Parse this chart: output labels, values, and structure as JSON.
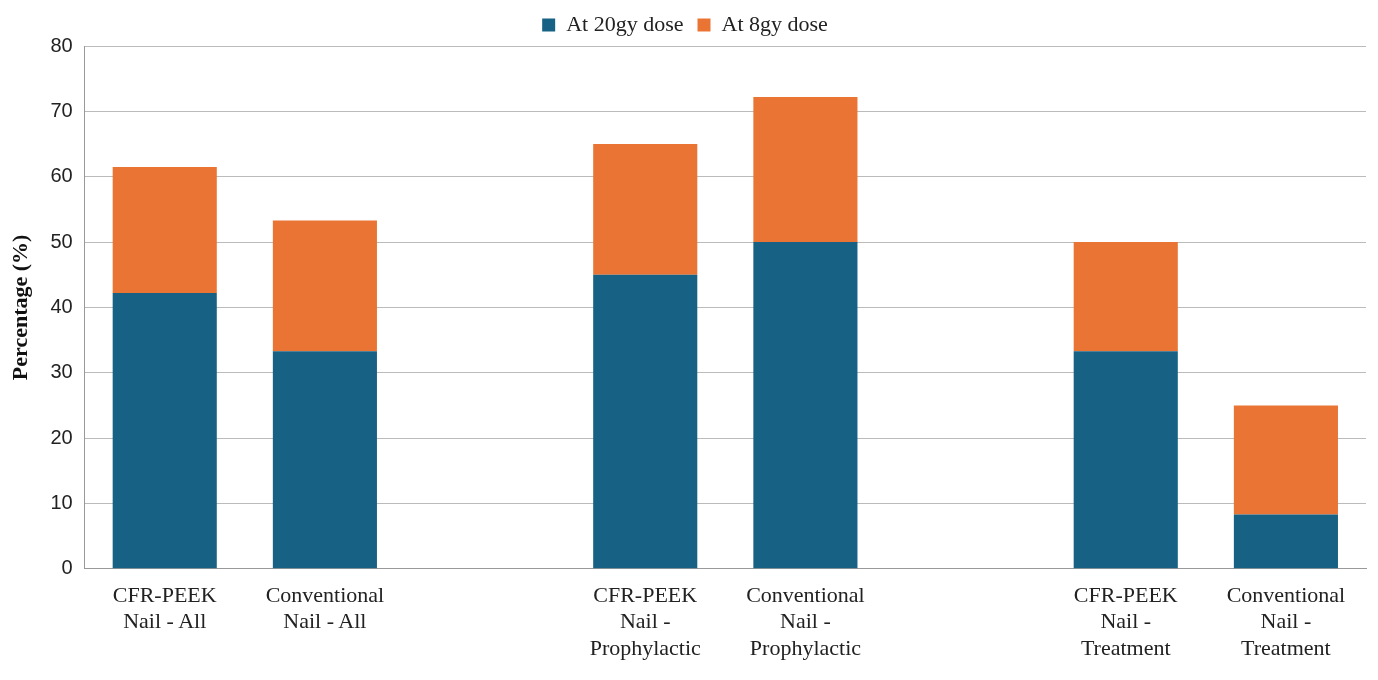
{
  "chart_data": {
    "type": "bar",
    "stacked": true,
    "ylabel": "Percentage (%)",
    "categories": [
      "CFR-PEEK Nail - All",
      "Conventional Nail - All",
      null,
      "CFR-PEEK Nail - Prophylactic",
      "Conventional Nail - Prophylactic",
      null,
      "CFR-PEEK Nail - Treatment",
      "Conventional Nail - Treatment"
    ],
    "series": [
      {
        "name": "At 20gy dose",
        "color": "#176184",
        "values": [
          42.2,
          33.3,
          null,
          45,
          50,
          null,
          33.3,
          8.3
        ]
      },
      {
        "name": "At 8gy dose",
        "color": "#e97434",
        "values": [
          19.3,
          20,
          null,
          20,
          22.2,
          null,
          16.7,
          16.7
        ]
      }
    ],
    "ylim": [
      0,
      80
    ],
    "yticks": [
      0,
      10,
      20,
      30,
      40,
      50,
      60,
      70,
      80
    ],
    "grid": "y",
    "legend": "top"
  }
}
